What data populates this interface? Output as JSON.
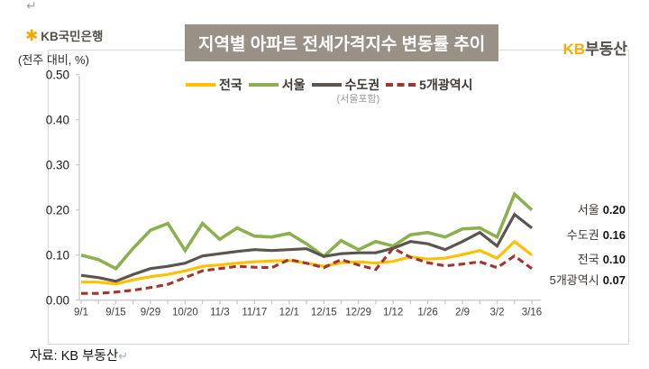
{
  "page": {
    "return_mark": "↵",
    "source_caption": "자료: KB 부동산"
  },
  "header": {
    "bank_logo_star": "✱",
    "bank_logo_text": "KB국민은행",
    "brand_kb": "KB",
    "brand_suffix": "부동산"
  },
  "chart_data": {
    "type": "line",
    "title": "지역별 아파트 전세가격지수 변동률 추이",
    "unit_label": "(전주 대비, %)",
    "ylabel": "",
    "xlabel": "",
    "ylim": [
      0.0,
      0.5
    ],
    "grid": false,
    "legend_position": "top",
    "y_tick_labels": [
      "0.00",
      "0.10",
      "0.20",
      "0.30",
      "0.40",
      "0.50"
    ],
    "x_tick_labels": [
      "9/1",
      "9/15",
      "9/29",
      "10/20",
      "11/3",
      "11/17",
      "12/1",
      "12/15",
      "12/29",
      "1/12",
      "1/26",
      "2/9",
      "3/2",
      "3/16"
    ],
    "x_label_every": 2,
    "legend": [
      {
        "label": "전국",
        "color": "#ffc000",
        "style": "solid",
        "note": ""
      },
      {
        "label": "서울",
        "color": "#8cb04e",
        "style": "solid",
        "note": ""
      },
      {
        "label": "수도권",
        "color": "#5a554e",
        "style": "solid",
        "note": "(서울포함)"
      },
      {
        "label": "5개광역시",
        "color": "#a2362e",
        "style": "dashed",
        "note": ""
      }
    ],
    "series": [
      {
        "name": "전국",
        "color": "#ffc000",
        "style": "solid",
        "values": [
          0.04,
          0.04,
          0.036,
          0.045,
          0.052,
          0.057,
          0.065,
          0.075,
          0.078,
          0.082,
          0.085,
          0.087,
          0.088,
          0.082,
          0.075,
          0.083,
          0.085,
          0.082,
          0.086,
          0.096,
          0.091,
          0.093,
          0.101,
          0.11,
          0.093,
          0.13,
          0.1
        ]
      },
      {
        "name": "서울",
        "color": "#8cb04e",
        "style": "solid",
        "values": [
          0.1,
          0.09,
          0.07,
          0.115,
          0.155,
          0.17,
          0.11,
          0.17,
          0.135,
          0.16,
          0.142,
          0.14,
          0.148,
          0.125,
          0.097,
          0.132,
          0.112,
          0.13,
          0.12,
          0.145,
          0.15,
          0.14,
          0.158,
          0.16,
          0.14,
          0.235,
          0.2
        ]
      },
      {
        "name": "수도권",
        "color": "#5a554e",
        "style": "solid",
        "values": [
          0.055,
          0.05,
          0.042,
          0.057,
          0.07,
          0.075,
          0.082,
          0.098,
          0.103,
          0.108,
          0.112,
          0.11,
          0.112,
          0.114,
          0.097,
          0.103,
          0.105,
          0.105,
          0.115,
          0.13,
          0.125,
          0.112,
          0.13,
          0.15,
          0.12,
          0.19,
          0.16
        ]
      },
      {
        "name": "5개광역시",
        "color": "#a2362e",
        "style": "dashed",
        "values": [
          0.015,
          0.015,
          0.018,
          0.022,
          0.028,
          0.035,
          0.05,
          0.065,
          0.07,
          0.075,
          0.073,
          0.072,
          0.09,
          0.082,
          0.072,
          0.09,
          0.078,
          0.068,
          0.115,
          0.095,
          0.083,
          0.076,
          0.08,
          0.085,
          0.072,
          0.098,
          0.07
        ]
      }
    ],
    "end_labels": [
      {
        "name": "서울",
        "value": "0.20"
      },
      {
        "name": "수도권",
        "value": "0.16"
      },
      {
        "name": "전국",
        "value": "0.10"
      },
      {
        "name": "5개광역시",
        "value": "0.07"
      }
    ]
  }
}
